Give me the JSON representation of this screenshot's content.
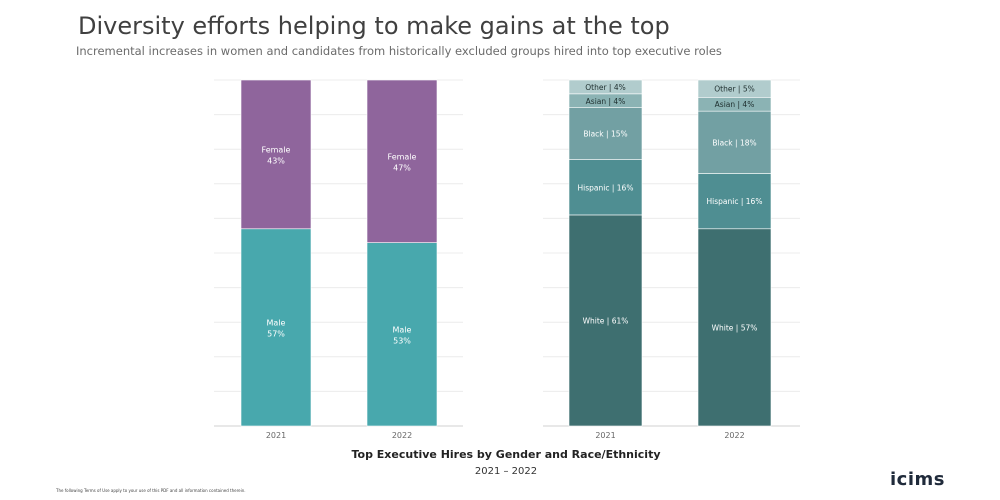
{
  "header": {
    "title": "Diversity efforts helping to make gains at the top",
    "subtitle": "Incremental increases in women and candidates from historically excluded groups hired into top executive roles"
  },
  "footer": {
    "chart_title": "Top Executive Hires by Gender and Race/Ethnicity",
    "date_range": "2021 – 2022",
    "footnote": "The following Terms of Use apply to your use of this PDF and all information contained therein.",
    "logo": "icims"
  },
  "colors": {
    "female": "#8f659c",
    "male": "#48a8ad",
    "white": "#3e6f70",
    "hispanic": "#4f8e92",
    "black": "#72a0a3",
    "asian": "#8bb3b4",
    "other": "#b1cccd"
  },
  "chart_data": [
    {
      "type": "bar",
      "stacked": true,
      "categories": [
        "2021",
        "2022"
      ],
      "ylim": [
        0,
        100
      ],
      "grid": true,
      "series": [
        {
          "key": "male",
          "label": "Male",
          "values": [
            57,
            53
          ],
          "label_text": [
            "57%",
            "53%"
          ]
        },
        {
          "key": "female",
          "label": "Female",
          "values": [
            43,
            47
          ],
          "label_text": [
            "43%",
            "47%"
          ]
        }
      ]
    },
    {
      "type": "bar",
      "stacked": true,
      "categories": [
        "2021",
        "2022"
      ],
      "ylim": [
        0,
        100
      ],
      "grid": true,
      "series": [
        {
          "key": "white",
          "label": "White",
          "values": [
            61,
            57
          ],
          "label_text": [
            "White | 61%",
            "White | 57%"
          ]
        },
        {
          "key": "hispanic",
          "label": "Hispanic",
          "values": [
            16,
            16
          ],
          "label_text": [
            "Hispanic | 16%",
            "Hispanic | 16%"
          ]
        },
        {
          "key": "black",
          "label": "Black",
          "values": [
            15,
            18
          ],
          "label_text": [
            "Black | 15%",
            "Black | 18%"
          ]
        },
        {
          "key": "asian",
          "label": "Asian",
          "values": [
            4,
            4
          ],
          "label_text": [
            "Asian | 4%",
            "Asian | 4%"
          ]
        },
        {
          "key": "other",
          "label": "Other",
          "values": [
            4,
            5
          ],
          "label_text": [
            "Other | 4%",
            "Other | 5%"
          ]
        }
      ]
    }
  ]
}
